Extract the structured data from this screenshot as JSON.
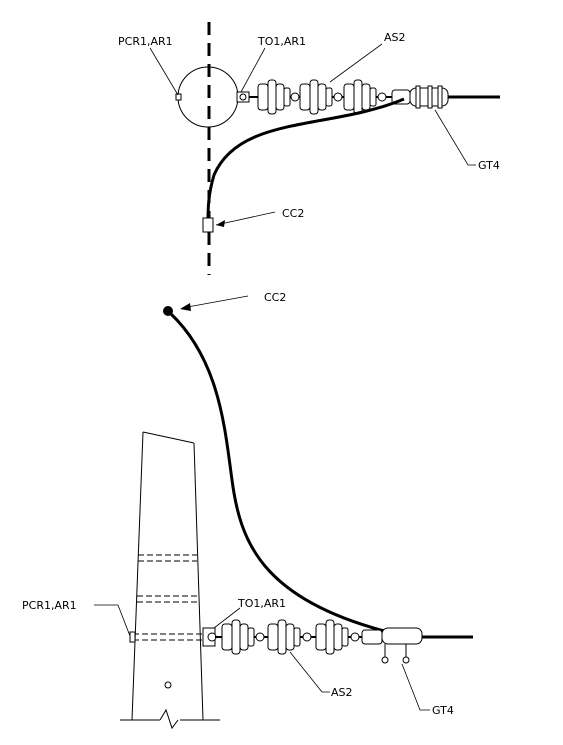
{
  "labels": {
    "top_pcr": "PCR1,AR1",
    "top_to": "TO1,AR1",
    "top_as": "AS2",
    "top_gt": "GT4",
    "top_cc": "CC2",
    "bottom_cc": "CC2",
    "bottom_pcr": "PCR1,AR1",
    "bottom_to": "TO1,AR1",
    "bottom_as": "AS2",
    "bottom_gt": "GT4"
  }
}
